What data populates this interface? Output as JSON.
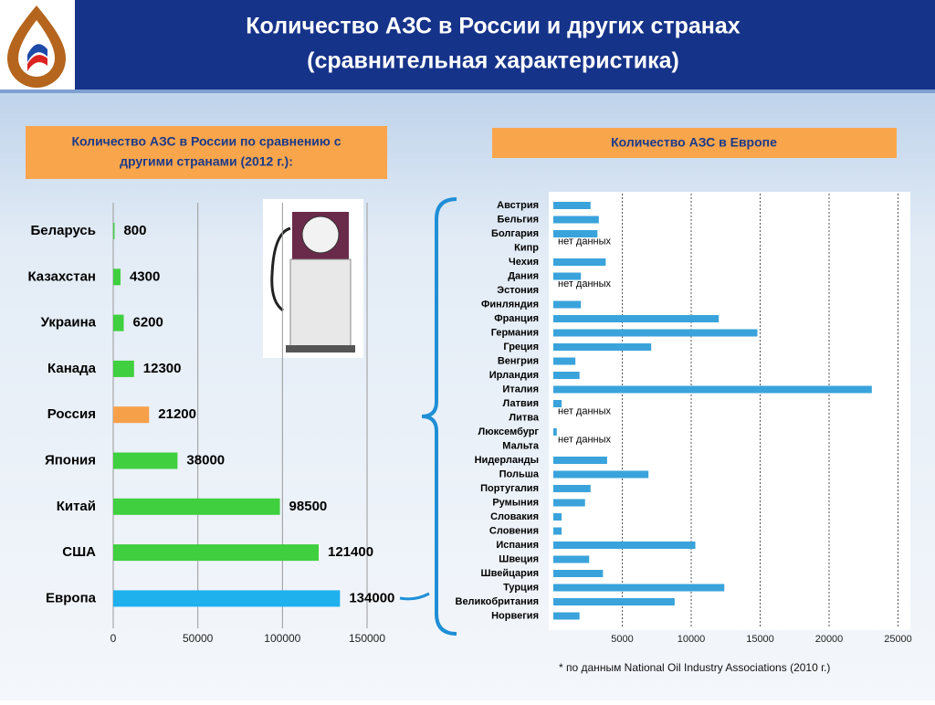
{
  "header": {
    "title_lines": [
      "Количество АЗС в России и других странах",
      "(сравнительная характеристика)"
    ]
  },
  "chart_data": [
    {
      "type": "hbar",
      "title": [
        "Количество АЗС в России по сравнению с",
        "другими странами (2012 г.):"
      ],
      "categories": [
        "Беларусь",
        "Казахстан",
        "Украина",
        "Канада",
        "Россия",
        "Япония",
        "Китай",
        "США",
        "Европа"
      ],
      "values": [
        800,
        4300,
        6200,
        12300,
        21200,
        38000,
        98500,
        121400,
        134000
      ],
      "colors": [
        "#3fcf3f",
        "#3fcf3f",
        "#3fcf3f",
        "#3fcf3f",
        "#f7a04a",
        "#3fcf3f",
        "#3fcf3f",
        "#3fcf3f",
        "#1fb0ee"
      ],
      "xlim": [
        0,
        150000
      ],
      "xticks": [
        0,
        50000,
        100000,
        150000
      ],
      "grid": true
    },
    {
      "type": "hbar",
      "title": [
        "Количество АЗС в Европе"
      ],
      "categories": [
        "Австрия",
        "Бельгия",
        "Болгария",
        "Кипр",
        "Чехия",
        "Дания",
        "Эстония",
        "Финляндия",
        "Франция",
        "Германия",
        "Греция",
        "Венгрия",
        "Ирландия",
        "Италия",
        "Латвия",
        "Литва",
        "Люксембург",
        "Мальта",
        "Нидерланды",
        "Польша",
        "Португалия",
        "Румыния",
        "Словакия",
        "Словения",
        "Испания",
        "Швеция",
        "Швейцария",
        "Турция",
        "Великобритания",
        "Норвегия"
      ],
      "values": [
        2700,
        3300,
        3200,
        null,
        3800,
        2000,
        null,
        2000,
        12000,
        14800,
        7100,
        1600,
        1900,
        23100,
        600,
        null,
        250,
        null,
        3900,
        6900,
        2700,
        2300,
        600,
        600,
        10300,
        2600,
        3600,
        12400,
        8800,
        1900
      ],
      "value_labels": [
        null,
        null,
        null,
        "нет данных",
        null,
        null,
        "нет данных",
        null,
        null,
        null,
        null,
        null,
        null,
        null,
        null,
        "нет данных",
        null,
        "нет данных",
        null,
        null,
        null,
        null,
        null,
        null,
        null,
        null,
        null,
        null,
        null,
        null
      ],
      "colors": [
        "#3aa3db"
      ],
      "xlim": [
        0,
        26000
      ],
      "xticks": [
        5000,
        10000,
        15000,
        20000,
        25000
      ],
      "grid": true
    }
  ],
  "footnote": "* по данным National Oil Industry Associations (2010 г.)"
}
